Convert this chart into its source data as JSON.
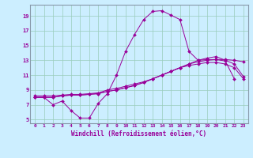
{
  "xlabel": "Windchill (Refroidissement éolien,°C)",
  "bg_color": "#cceeff",
  "line_color": "#990099",
  "xlim": [
    -0.5,
    23.5
  ],
  "ylim": [
    4.5,
    20.5
  ],
  "xticks": [
    0,
    1,
    2,
    3,
    4,
    5,
    6,
    7,
    8,
    9,
    10,
    11,
    12,
    13,
    14,
    15,
    16,
    17,
    18,
    19,
    20,
    21,
    22,
    23
  ],
  "yticks": [
    5,
    7,
    9,
    11,
    13,
    15,
    17,
    19
  ],
  "line1_x": [
    0,
    1,
    2,
    3,
    4,
    5,
    6,
    7,
    8,
    9,
    10,
    11,
    12,
    13,
    14,
    15,
    16,
    17,
    18,
    19,
    20,
    21,
    22
  ],
  "line1_y": [
    8.0,
    8.0,
    7.0,
    7.5,
    6.2,
    5.2,
    5.2,
    7.2,
    8.5,
    11.0,
    14.2,
    16.5,
    18.5,
    19.6,
    19.7,
    19.1,
    18.5,
    14.2,
    13.0,
    13.1,
    13.1,
    12.9,
    10.5
  ],
  "line2_x": [
    0,
    1,
    2,
    3,
    4,
    5,
    6,
    7,
    8,
    9,
    10,
    11,
    12,
    13,
    14,
    15,
    16,
    17,
    18,
    19,
    20,
    21,
    22,
    23
  ],
  "line2_y": [
    8.0,
    8.0,
    8.0,
    8.2,
    8.3,
    8.3,
    8.4,
    8.5,
    8.8,
    9.0,
    9.3,
    9.6,
    10.0,
    10.5,
    11.0,
    11.5,
    12.0,
    12.5,
    12.8,
    13.0,
    13.1,
    13.1,
    13.0,
    12.8
  ],
  "line3_x": [
    0,
    1,
    2,
    3,
    4,
    5,
    6,
    7,
    8,
    9,
    10,
    11,
    12,
    13,
    14,
    15,
    16,
    17,
    18,
    19,
    20,
    21,
    22,
    23
  ],
  "line3_y": [
    8.0,
    8.0,
    8.0,
    8.2,
    8.3,
    8.3,
    8.4,
    8.5,
    8.8,
    9.0,
    9.3,
    9.6,
    10.0,
    10.5,
    11.0,
    11.5,
    12.0,
    12.5,
    13.0,
    13.3,
    13.5,
    13.0,
    12.5,
    10.8
  ],
  "line4_x": [
    0,
    1,
    2,
    3,
    4,
    5,
    6,
    7,
    8,
    9,
    10,
    11,
    12,
    13,
    14,
    15,
    16,
    17,
    18,
    19,
    20,
    21,
    22,
    23
  ],
  "line4_y": [
    8.2,
    8.2,
    8.2,
    8.3,
    8.4,
    8.4,
    8.5,
    8.6,
    9.0,
    9.2,
    9.5,
    9.8,
    10.1,
    10.5,
    11.0,
    11.5,
    12.0,
    12.3,
    12.5,
    12.7,
    12.7,
    12.5,
    12.0,
    10.5
  ]
}
